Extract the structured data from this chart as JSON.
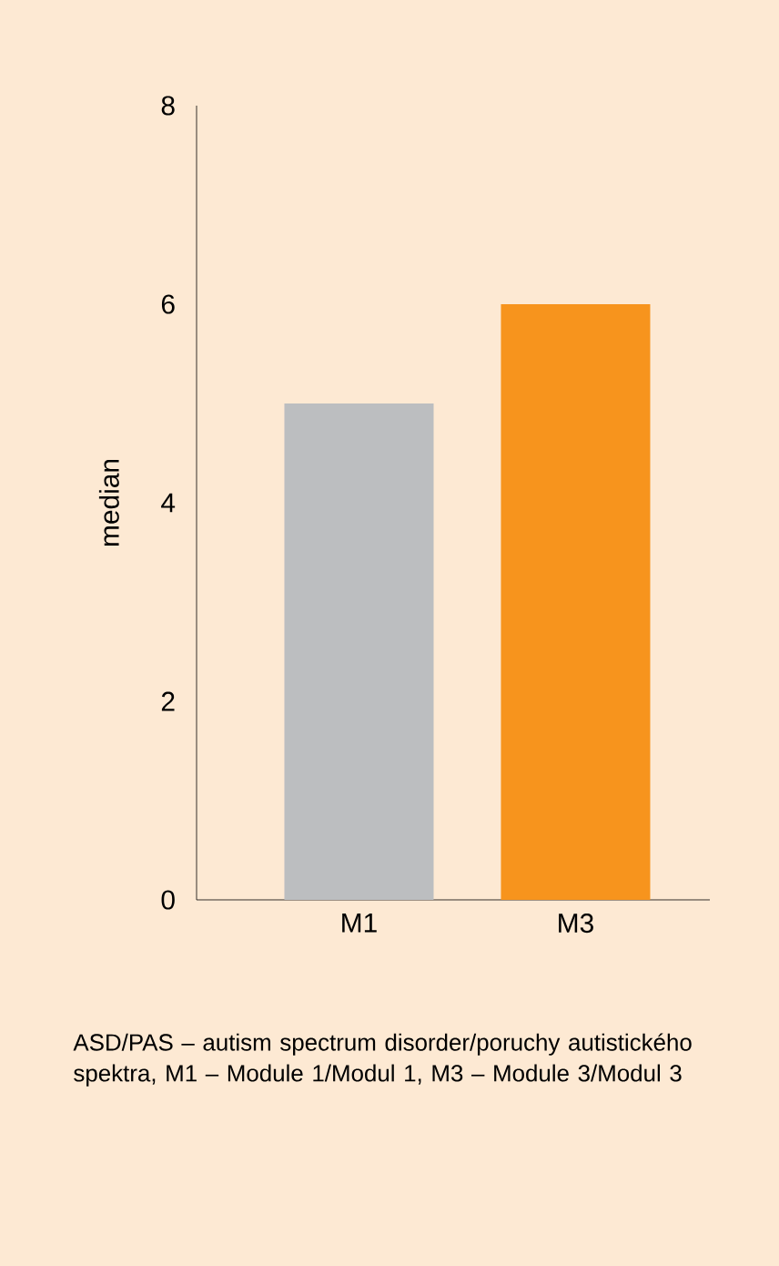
{
  "chart_data": {
    "type": "bar",
    "ylabel": "median",
    "categories": [
      "M1",
      "M3"
    ],
    "values": [
      5,
      6
    ],
    "colors": [
      "#bcbec0",
      "#f7941d"
    ],
    "ylim": [
      0,
      8
    ],
    "yticks": [
      0,
      2,
      4,
      6,
      8
    ],
    "annotations": [
      "ASD/PAS – autism spectrum disorder/poruchy autistického spektra, M1 – Module 1/Modul 1, M3 – Module 3/Modul 3"
    ]
  }
}
